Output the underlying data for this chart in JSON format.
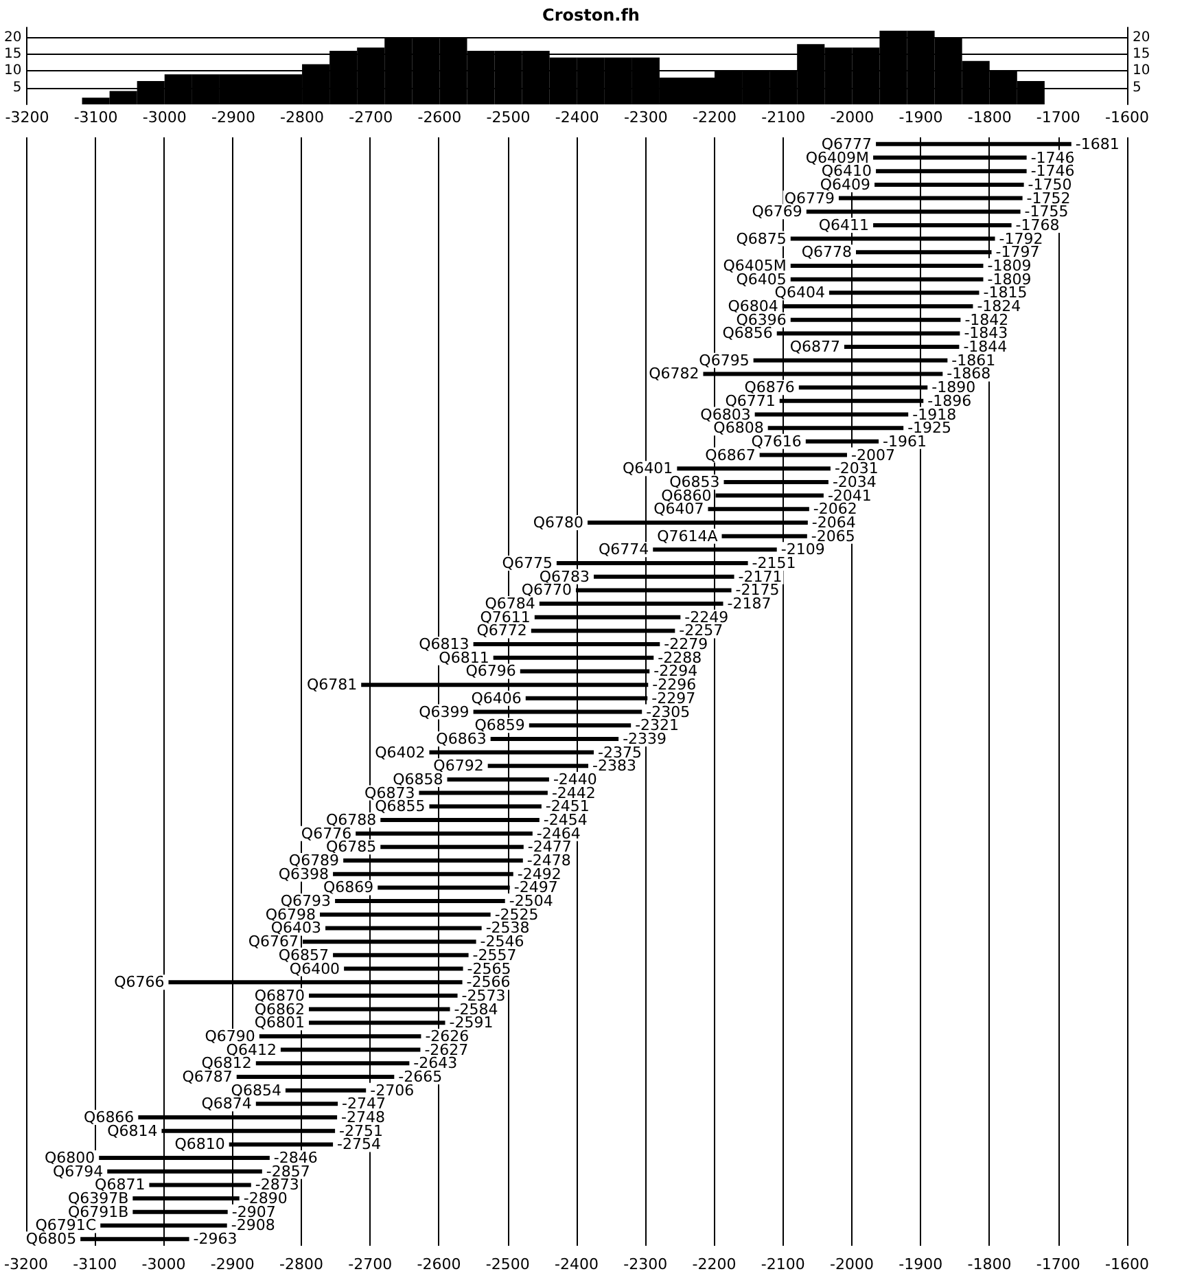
{
  "chart_data": [
    {
      "type": "histogram",
      "title": "Croston.fh",
      "color": "#000000",
      "bins": [
        -3120,
        -3080,
        -3040,
        -3000,
        -2960,
        -2920,
        -2880,
        -2840,
        -2800,
        -2760,
        -2720,
        -2680,
        -2640,
        -2600,
        -2560,
        -2520,
        -2480,
        -2440,
        -2400,
        -2360,
        -2320,
        -2280,
        -2240,
        -2200,
        -2160,
        -2120,
        -2080,
        -2040,
        -2000,
        -1960,
        -1920,
        -1880,
        -1840,
        -1800,
        -1760,
        -1720
      ],
      "values": [
        2,
        4,
        7,
        9,
        9,
        9,
        9,
        9,
        12,
        16,
        17,
        20,
        20,
        20,
        16,
        16,
        16,
        14,
        14,
        14,
        14,
        8,
        8,
        10,
        10,
        10,
        18,
        17,
        17,
        22,
        22,
        20,
        13,
        10,
        7
      ],
      "xlim": [
        -3200,
        -1600
      ],
      "xticks": [
        -3200,
        -3100,
        -3000,
        -2900,
        -2800,
        -2700,
        -2600,
        -2500,
        -2400,
        -2300,
        -2200,
        -2100,
        -2000,
        -1900,
        -1800,
        -1700,
        -1600
      ],
      "ylim": [
        0,
        23
      ],
      "yticks": [
        5,
        10,
        15,
        20
      ],
      "y2lim": [
        0,
        23
      ],
      "y2ticks": [
        5,
        10,
        15,
        20
      ],
      "grid": "y"
    },
    {
      "type": "bar",
      "orientation": "horizontal",
      "color": "#000000",
      "grid": "x",
      "categories": [
        "Q6777",
        "Q6409M",
        "Q6410",
        "Q6409",
        "Q6779",
        "Q6769",
        "Q6411",
        "Q6875",
        "Q6778",
        "Q6405M",
        "Q6405",
        "Q6404",
        "Q6804",
        "Q6396",
        "Q6856",
        "Q6877",
        "Q6795",
        "Q6782",
        "Q6876",
        "Q6771",
        "Q6803",
        "Q6808",
        "Q7616",
        "Q6867",
        "Q6401",
        "Q6853",
        "Q6860",
        "Q6407",
        "Q6780",
        "Q7614A",
        "Q6774",
        "Q6775",
        "Q6783",
        "Q6770",
        "Q6784",
        "Q7611",
        "Q6772",
        "Q6813",
        "Q6811",
        "Q6796",
        "Q6781",
        "Q6406",
        "Q6399",
        "Q6859",
        "Q6863",
        "Q6402",
        "Q6792",
        "Q6858",
        "Q6873",
        "Q6855",
        "Q6788",
        "Q6776",
        "Q6785",
        "Q6789",
        "Q6398",
        "Q6869",
        "Q6793",
        "Q6798",
        "Q6403",
        "Q6767",
        "Q6857",
        "Q6400",
        "Q6766",
        "Q6870",
        "Q6862",
        "Q6801",
        "Q6790",
        "Q6412",
        "Q6812",
        "Q6787",
        "Q6854",
        "Q6874",
        "Q6866",
        "Q6814",
        "Q6810",
        "Q6800",
        "Q6794",
        "Q6871",
        "Q6397B",
        "Q6791B",
        "Q6791C",
        "Q6805"
      ],
      "base": [
        -1965,
        -1969,
        -1965,
        -1967,
        -2019,
        -2066,
        -1969,
        -2089,
        -1994,
        -2089,
        -2089,
        -2033,
        -2101,
        -2089,
        -2109,
        -2011,
        -2143,
        -2216,
        -2077,
        -2105,
        -2141,
        -2122,
        -2067,
        -2134,
        -2254,
        -2186,
        -2198,
        -2209,
        -2384,
        -2189,
        -2289,
        -2429,
        -2375,
        -2401,
        -2454,
        -2461,
        -2466,
        -2550,
        -2521,
        -2482,
        -2713,
        -2474,
        -2550,
        -2469,
        -2525,
        -2614,
        -2529,
        -2588,
        -2629,
        -2614,
        -2685,
        -2721,
        -2685,
        -2739,
        -2754,
        -2689,
        -2751,
        -2773,
        -2765,
        -2798,
        -2754,
        -2738,
        -2993,
        -2789,
        -2789,
        -2789,
        -2861,
        -2830,
        -2866,
        -2894,
        -2823,
        -2866,
        -3037,
        -3003,
        -2905,
        -3094,
        -3082,
        -3021,
        -3045,
        -3045,
        -3092,
        -3121
      ],
      "values": [
        284,
        223,
        219,
        217,
        267,
        311,
        201,
        297,
        197,
        280,
        280,
        218,
        277,
        247,
        266,
        167,
        282,
        348,
        187,
        209,
        223,
        197,
        106,
        127,
        223,
        152,
        157,
        147,
        320,
        124,
        180,
        278,
        204,
        226,
        267,
        212,
        209,
        271,
        233,
        188,
        417,
        177,
        245,
        148,
        186,
        239,
        146,
        148,
        187,
        163,
        231,
        257,
        208,
        261,
        262,
        192,
        247,
        248,
        227,
        252,
        197,
        173,
        427,
        216,
        205,
        198,
        235,
        203,
        223,
        229,
        117,
        119,
        289,
        252,
        151,
        248,
        225,
        148,
        155,
        138,
        184,
        158
      ],
      "value_labels": [
        "-1681",
        "-1746",
        "-1746",
        "-1750",
        "-1752",
        "-1755",
        "-1768",
        "-1792",
        "-1797",
        "-1809",
        "-1809",
        "-1815",
        "-1824",
        "-1842",
        "-1843",
        "-1844",
        "-1861",
        "-1868",
        "-1890",
        "-1896",
        "-1918",
        "-1925",
        "-1961",
        "-2007",
        "-2031",
        "-2034",
        "-2041",
        "-2062",
        "-2064",
        "-2065",
        "-2109",
        "-2151",
        "-2171",
        "-2175",
        "-2187",
        "-2249",
        "-2257",
        "-2279",
        "-2288",
        "-2294",
        "-2296",
        "-2297",
        "-2305",
        "-2321",
        "-2339",
        "-2375",
        "-2383",
        "-2440",
        "-2442",
        "-2451",
        "-2454",
        "-2464",
        "-2477",
        "-2478",
        "-2492",
        "-2497",
        "-2504",
        "-2525",
        "-2538",
        "-2546",
        "-2557",
        "-2565",
        "-2566",
        "-2573",
        "-2584",
        "-2591",
        "-2626",
        "-2627",
        "-2643",
        "-2665",
        "-2706",
        "-2747",
        "-2748",
        "-2751",
        "-2754",
        "-2846",
        "-2857",
        "-2873",
        "-2890",
        "-2907",
        "-2908",
        "-2963"
      ],
      "xlim": [
        -3200,
        -1600
      ],
      "xticks": [
        -3200,
        -3100,
        -3000,
        -2900,
        -2800,
        -2700,
        -2600,
        -2500,
        -2400,
        -2300,
        -2200,
        -2100,
        -2000,
        -1900,
        -1800,
        -1700,
        -1600
      ]
    }
  ]
}
